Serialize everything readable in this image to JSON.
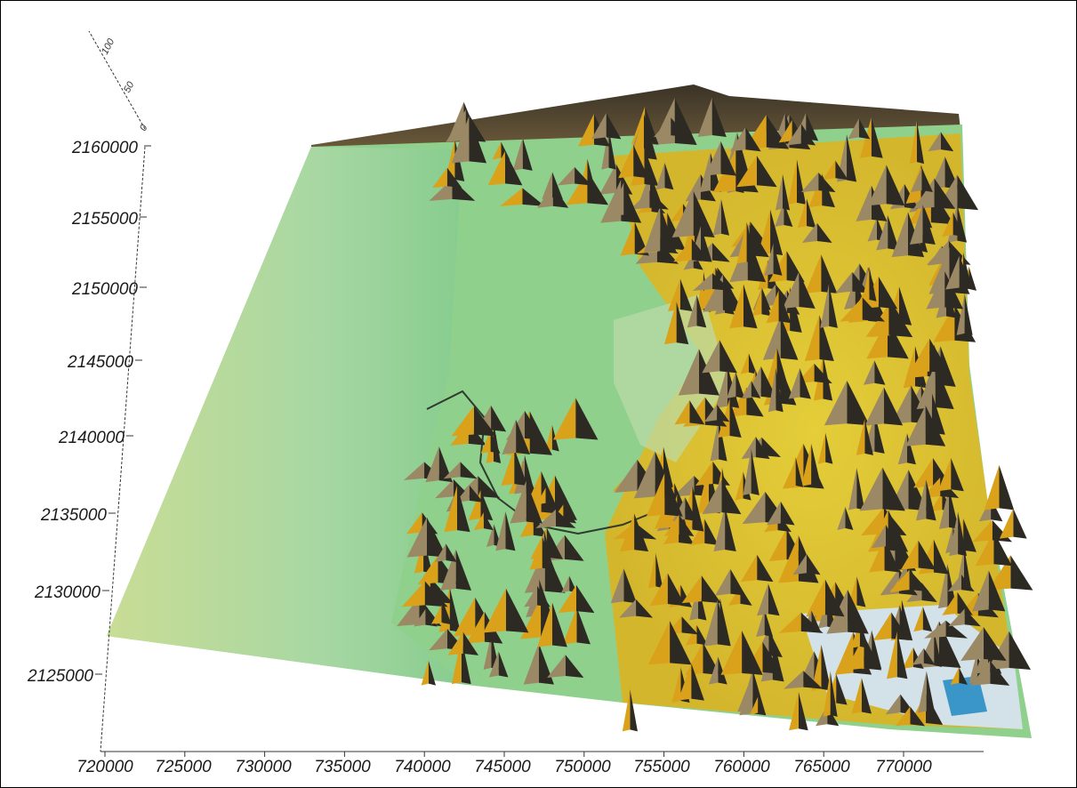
{
  "chart_data": {
    "type": "3d-surface",
    "title": "",
    "xlabel": "",
    "ylabel": "",
    "zlabel": "",
    "x_ticks": [
      "720000",
      "725000",
      "730000",
      "735000",
      "740000",
      "745000",
      "750000",
      "755000",
      "760000",
      "765000",
      "770000"
    ],
    "y_ticks": [
      "2125000",
      "2130000",
      "2135000",
      "2140000",
      "2145000",
      "2150000",
      "2155000",
      "2160000"
    ],
    "z_ticks": [
      "0",
      "50",
      "100"
    ],
    "xlim": [
      720000,
      772000
    ],
    "ylim": [
      2122000,
      2160000
    ],
    "grid": false,
    "legend": "none",
    "colormap": {
      "low": "#c7dd8e",
      "lowland": "#7fcf86",
      "mid": "#e8c21a",
      "high": "#2f2b24",
      "peak": "#d9e4ea",
      "accent": "#3a95c8"
    }
  }
}
